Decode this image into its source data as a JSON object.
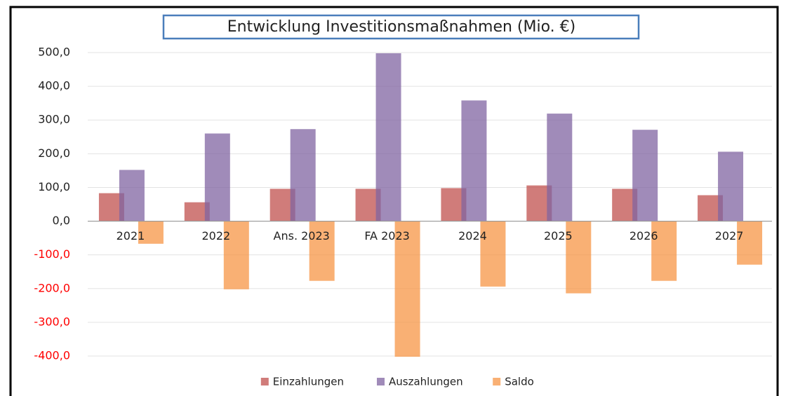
{
  "chart_data": {
    "type": "bar",
    "title": "Entwicklung Investitionsmaßnahmen (Mio. €)",
    "categories": [
      "2021",
      "2022",
      "Ans. 2023",
      "FA 2023",
      "2024",
      "2025",
      "2026",
      "2027"
    ],
    "series": [
      {
        "name": "Einzahlungen",
        "color": "#c0504d",
        "values": [
          83,
          56,
          96,
          96,
          98,
          106,
          96,
          77
        ]
      },
      {
        "name": "Auszahlungen",
        "color": "#8064a2",
        "values": [
          152,
          260,
          273,
          498,
          358,
          319,
          271,
          206
        ]
      },
      {
        "name": "Saldo",
        "color": "#f79646",
        "values": [
          -67,
          -202,
          -177,
          -402,
          -194,
          -214,
          -177,
          -129
        ]
      }
    ],
    "ylim": [
      -400,
      500
    ],
    "yticks": [
      {
        "value": 500,
        "label": "500,0"
      },
      {
        "value": 400,
        "label": "400,0"
      },
      {
        "value": 300,
        "label": "300,0"
      },
      {
        "value": 200,
        "label": "200,0"
      },
      {
        "value": 100,
        "label": "100,0"
      },
      {
        "value": 0,
        "label": "0,0"
      },
      {
        "value": -100,
        "label": "-100,0"
      },
      {
        "value": -200,
        "label": "-200,0"
      },
      {
        "value": -300,
        "label": "-300,0"
      },
      {
        "value": -400,
        "label": "-400,0"
      }
    ],
    "negative_tick_color": "#ff0000",
    "grid": true,
    "legend": "bottom"
  }
}
